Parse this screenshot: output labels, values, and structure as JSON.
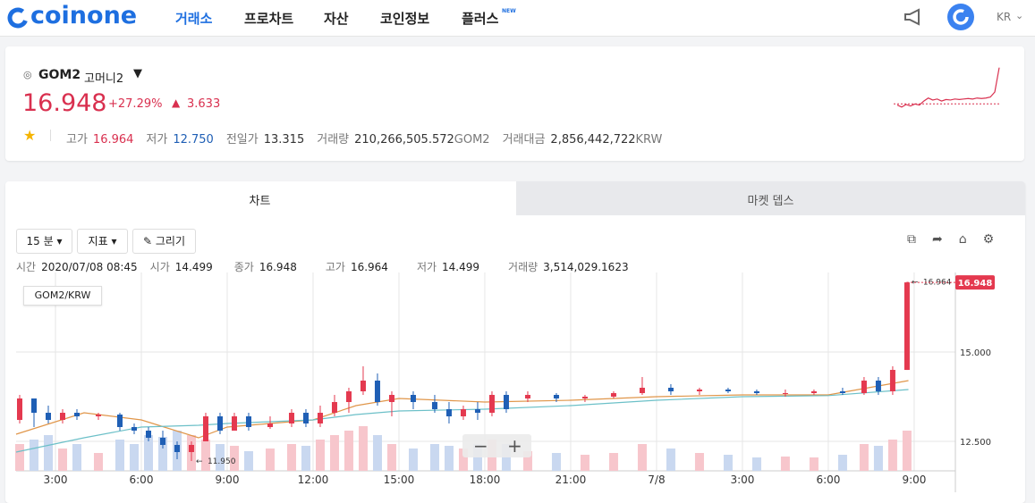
{
  "header": {
    "logo": "coinone",
    "nav": [
      "거래소",
      "프로차트",
      "자산",
      "코인정보",
      "플러스"
    ],
    "new_badge": "NEW",
    "lang": "KR"
  },
  "ticker": {
    "symbol": "GOM2",
    "name": "고머니2",
    "price": "16.948",
    "change_rate": "+27.29%",
    "change": "3.633",
    "stats": [
      {
        "label": "고가",
        "value": "16.964"
      },
      {
        "label": "저가",
        "value": "12.750"
      },
      {
        "label": "전일가",
        "value": "13.315"
      },
      {
        "label": "거래량",
        "value": "210,266,505.572",
        "unit": "GOM2"
      },
      {
        "label": "거래대금",
        "value": "2,856,442,722",
        "unit": "KRW"
      }
    ],
    "sparkline": {
      "values": [
        13.2,
        13.0,
        13.25,
        13.1,
        13.3,
        13.2,
        13.6,
        13.9,
        13.7,
        13.8,
        13.6,
        13.75,
        13.7,
        13.8,
        13.75,
        13.8,
        13.85,
        13.8,
        13.9,
        13.85,
        13.9,
        14.0,
        14.5,
        16.948
      ],
      "ylim": [
        12.8,
        17.1
      ],
      "baseline": 13.315
    }
  },
  "tabs": [
    "차트",
    "마켓 뎁스"
  ],
  "toolbar": {
    "interval": "15 분",
    "indicator": "지표",
    "draw": "그리기"
  },
  "ohlc": [
    {
      "label": "시간",
      "value": "2020/07/08 08:45"
    },
    {
      "label": "시가",
      "value": "14.499"
    },
    {
      "label": "종가",
      "value": "16.948"
    },
    {
      "label": "고가",
      "value": "16.964"
    },
    {
      "label": "저가",
      "value": "14.499"
    },
    {
      "label": "거래량",
      "value": "3,514,029.1623"
    }
  ],
  "chart_data": {
    "type": "candlestick",
    "legend": "GOM2/KRW",
    "xlim": [
      1.625,
      34.44
    ],
    "xticks": [
      {
        "value": 3,
        "label": "3:00"
      },
      {
        "value": 6,
        "label": "6:00"
      },
      {
        "value": 9,
        "label": "9:00"
      },
      {
        "value": 12,
        "label": "12:00"
      },
      {
        "value": 15,
        "label": "15:00"
      },
      {
        "value": 18,
        "label": "18:00"
      },
      {
        "value": 21,
        "label": "21:00"
      },
      {
        "value": 24,
        "label": "7/8"
      },
      {
        "value": 27,
        "label": "3:00"
      },
      {
        "value": 30,
        "label": "6:00"
      },
      {
        "value": 33,
        "label": "9:00"
      }
    ],
    "ylim": [
      11.675,
      17.225
    ],
    "yticks": [
      {
        "value": 15,
        "label": "15.000"
      },
      {
        "value": 12.5,
        "label": "12.500"
      }
    ],
    "vlim": [
      0,
      60
    ],
    "up_color": "#e4394f",
    "down_color": "#1f5fb5",
    "current_price": 16.948,
    "high_label": 16.964,
    "low_label": {
      "value": 11.95,
      "label": "11.950"
    },
    "candles": [
      {
        "x": 1.75,
        "open": 13.1,
        "high": 13.8,
        "low": 13.0,
        "close": 13.7,
        "volume": 30
      },
      {
        "x": 2.25,
        "open": 13.7,
        "high": 13.7,
        "low": 12.9,
        "close": 13.3,
        "volume": 35
      },
      {
        "x": 2.75,
        "open": 13.3,
        "high": 13.5,
        "low": 13.0,
        "close": 13.1,
        "volume": 40
      },
      {
        "x": 3.25,
        "open": 13.1,
        "high": 13.4,
        "low": 13.0,
        "close": 13.3,
        "volume": 25
      },
      {
        "x": 3.75,
        "open": 13.3,
        "high": 13.4,
        "low": 13.1,
        "close": 13.2,
        "volume": 30
      },
      {
        "x": 4.5,
        "open": 13.2,
        "high": 13.3,
        "low": 13.1,
        "close": 13.25,
        "volume": 20
      },
      {
        "x": 5.25,
        "open": 13.25,
        "high": 13.3,
        "low": 12.8,
        "close": 12.9,
        "volume": 35
      },
      {
        "x": 5.75,
        "open": 12.9,
        "high": 13.0,
        "low": 12.7,
        "close": 12.8,
        "volume": 30
      },
      {
        "x": 6.25,
        "open": 12.8,
        "high": 12.9,
        "low": 12.5,
        "close": 12.6,
        "volume": 40
      },
      {
        "x": 6.75,
        "open": 12.6,
        "high": 12.8,
        "low": 12.3,
        "close": 12.4,
        "volume": 38
      },
      {
        "x": 7.25,
        "open": 12.4,
        "high": 12.5,
        "low": 12.0,
        "close": 12.2,
        "volume": 45
      },
      {
        "x": 7.75,
        "open": 12.2,
        "high": 12.5,
        "low": 11.95,
        "close": 12.4,
        "volume": 40
      },
      {
        "x": 8.25,
        "open": 12.5,
        "high": 13.3,
        "low": 12.5,
        "close": 13.2,
        "volume": 35
      },
      {
        "x": 8.75,
        "open": 13.2,
        "high": 13.3,
        "low": 12.7,
        "close": 12.8,
        "volume": 30
      },
      {
        "x": 9.25,
        "open": 12.8,
        "high": 13.3,
        "low": 12.8,
        "close": 13.2,
        "volume": 28
      },
      {
        "x": 9.75,
        "open": 13.2,
        "high": 13.3,
        "low": 12.8,
        "close": 12.9,
        "volume": 22
      },
      {
        "x": 10.5,
        "open": 12.9,
        "high": 13.2,
        "low": 12.85,
        "close": 13.0,
        "volume": 25
      },
      {
        "x": 11.25,
        "open": 13.0,
        "high": 13.4,
        "low": 12.9,
        "close": 13.3,
        "volume": 30
      },
      {
        "x": 11.75,
        "open": 13.3,
        "high": 13.4,
        "low": 12.9,
        "close": 13.0,
        "volume": 28
      },
      {
        "x": 12.25,
        "open": 13.0,
        "high": 13.5,
        "low": 12.9,
        "close": 13.3,
        "volume": 35
      },
      {
        "x": 12.75,
        "open": 13.3,
        "high": 13.8,
        "low": 13.2,
        "close": 13.6,
        "volume": 40
      },
      {
        "x": 13.25,
        "open": 13.6,
        "high": 14.0,
        "low": 13.3,
        "close": 13.9,
        "volume": 45
      },
      {
        "x": 13.75,
        "open": 13.9,
        "high": 14.6,
        "low": 13.8,
        "close": 14.2,
        "volume": 50
      },
      {
        "x": 14.25,
        "open": 14.2,
        "high": 14.4,
        "low": 13.5,
        "close": 13.6,
        "volume": 40
      },
      {
        "x": 14.75,
        "open": 13.6,
        "high": 13.9,
        "low": 13.2,
        "close": 13.8,
        "volume": 30
      },
      {
        "x": 15.5,
        "open": 13.8,
        "high": 13.9,
        "low": 13.4,
        "close": 13.6,
        "volume": 25
      },
      {
        "x": 16.25,
        "open": 13.6,
        "high": 13.8,
        "low": 13.3,
        "close": 13.4,
        "volume": 30
      },
      {
        "x": 16.75,
        "open": 13.4,
        "high": 13.6,
        "low": 13.0,
        "close": 13.2,
        "volume": 28
      },
      {
        "x": 17.25,
        "open": 13.2,
        "high": 13.5,
        "low": 13.1,
        "close": 13.4,
        "volume": 25
      },
      {
        "x": 17.75,
        "open": 13.4,
        "high": 13.6,
        "low": 13.1,
        "close": 13.3,
        "volume": 30
      },
      {
        "x": 18.25,
        "open": 13.3,
        "high": 13.9,
        "low": 13.2,
        "close": 13.8,
        "volume": 35
      },
      {
        "x": 18.75,
        "open": 13.8,
        "high": 13.9,
        "low": 13.3,
        "close": 13.4,
        "volume": 30
      },
      {
        "x": 19.5,
        "open": 13.7,
        "high": 13.9,
        "low": 13.6,
        "close": 13.8,
        "volume": 22
      },
      {
        "x": 20.5,
        "open": 13.8,
        "high": 13.85,
        "low": 13.6,
        "close": 13.7,
        "volume": 20
      },
      {
        "x": 21.5,
        "open": 13.7,
        "high": 13.8,
        "low": 13.6,
        "close": 13.75,
        "volume": 18
      },
      {
        "x": 22.5,
        "open": 13.75,
        "high": 13.9,
        "low": 13.7,
        "close": 13.85,
        "volume": 20
      },
      {
        "x": 23.5,
        "open": 13.85,
        "high": 14.3,
        "low": 13.8,
        "close": 14.0,
        "volume": 30
      },
      {
        "x": 24.5,
        "open": 14.0,
        "high": 14.1,
        "low": 13.8,
        "close": 13.9,
        "volume": 25
      },
      {
        "x": 25.5,
        "open": 13.9,
        "high": 14.0,
        "low": 13.8,
        "close": 13.95,
        "volume": 20
      },
      {
        "x": 26.5,
        "open": 13.95,
        "high": 14.0,
        "low": 13.85,
        "close": 13.9,
        "volume": 18
      },
      {
        "x": 27.5,
        "open": 13.9,
        "high": 13.95,
        "low": 13.8,
        "close": 13.85,
        "volume": 15
      },
      {
        "x": 28.5,
        "open": 13.85,
        "high": 13.95,
        "low": 13.75,
        "close": 13.85,
        "volume": 16
      },
      {
        "x": 29.5,
        "open": 13.85,
        "high": 13.95,
        "low": 13.8,
        "close": 13.9,
        "volume": 15
      },
      {
        "x": 30.5,
        "open": 13.9,
        "high": 14.0,
        "low": 13.8,
        "close": 13.85,
        "volume": 18
      },
      {
        "x": 31.25,
        "open": 13.85,
        "high": 14.3,
        "low": 13.8,
        "close": 14.2,
        "volume": 30
      },
      {
        "x": 31.75,
        "open": 14.2,
        "high": 14.3,
        "low": 13.8,
        "close": 13.9,
        "volume": 28
      },
      {
        "x": 32.25,
        "open": 13.9,
        "high": 14.6,
        "low": 13.8,
        "close": 14.5,
        "volume": 35
      },
      {
        "x": 32.75,
        "open": 14.499,
        "high": 16.964,
        "low": 14.499,
        "close": 16.948,
        "volume": 45
      }
    ],
    "series": [
      {
        "color": "#e0964a",
        "x": [
          1.625,
          4,
          6,
          8,
          9,
          12,
          13.5,
          15,
          18,
          21,
          24,
          27,
          30,
          32.8
        ],
        "values": [
          12.7,
          13.3,
          13.1,
          12.6,
          12.9,
          13.1,
          13.5,
          13.7,
          13.6,
          13.65,
          13.75,
          13.8,
          13.8,
          14.2
        ]
      },
      {
        "color": "#6cc0c8",
        "x": [
          1.625,
          4,
          6,
          8,
          9,
          12,
          13.5,
          15,
          18,
          21,
          24,
          27,
          30,
          32.8
        ],
        "values": [
          12.2,
          12.6,
          12.9,
          12.95,
          13.0,
          13.1,
          13.25,
          13.35,
          13.4,
          13.5,
          13.65,
          13.75,
          13.78,
          13.95
        ]
      }
    ]
  }
}
